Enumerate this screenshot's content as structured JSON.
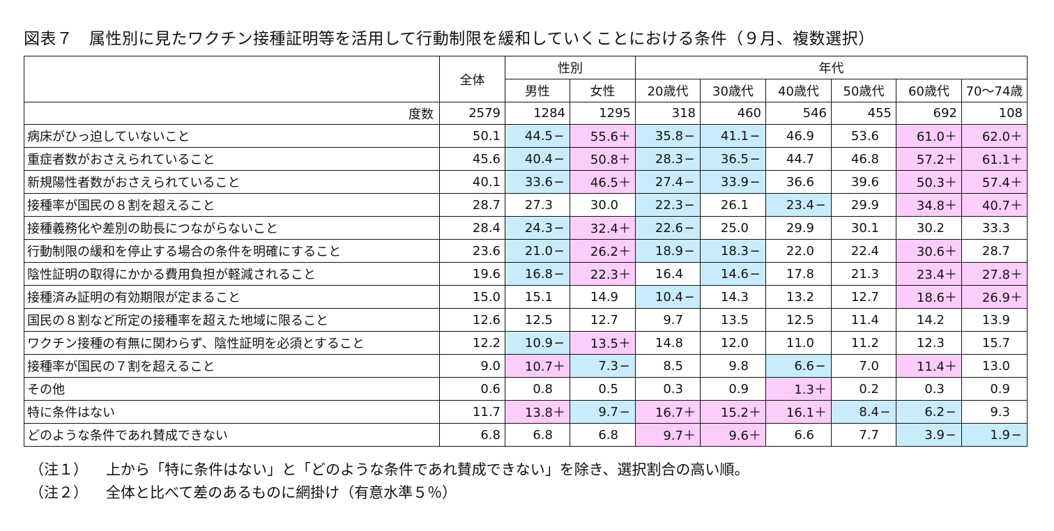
{
  "title": "図表７　属性別に見たワクチン接種証明等を活用して行動制限を緩和していくことにおける条件（９月、複数選択）",
  "headers": {
    "all": "全体",
    "gender_group": "性別",
    "age_group": "年代",
    "columns": [
      "男性",
      "女性",
      "20歳代",
      "30歳代",
      "40歳代",
      "50歳代",
      "60歳代",
      "70～74歳"
    ]
  },
  "counts": {
    "label": "度数",
    "values": [
      "2579",
      "1284",
      "1295",
      "318",
      "460",
      "546",
      "455",
      "692",
      "108"
    ]
  },
  "rows": [
    {
      "label": "病床がひっ迫していないこと",
      "cells": [
        {
          "v": "50.1",
          "m": ""
        },
        {
          "v": "44.5",
          "m": "−"
        },
        {
          "v": "55.6",
          "m": "＋"
        },
        {
          "v": "35.8",
          "m": "−"
        },
        {
          "v": "41.1",
          "m": "−"
        },
        {
          "v": "46.9",
          "m": ""
        },
        {
          "v": "53.6",
          "m": ""
        },
        {
          "v": "61.0",
          "m": "＋"
        },
        {
          "v": "62.0",
          "m": "＋"
        }
      ]
    },
    {
      "label": "重症者数がおさえられていること",
      "cells": [
        {
          "v": "45.6",
          "m": ""
        },
        {
          "v": "40.4",
          "m": "−"
        },
        {
          "v": "50.8",
          "m": "＋"
        },
        {
          "v": "28.3",
          "m": "−"
        },
        {
          "v": "36.5",
          "m": "−"
        },
        {
          "v": "44.7",
          "m": ""
        },
        {
          "v": "46.8",
          "m": ""
        },
        {
          "v": "57.2",
          "m": "＋"
        },
        {
          "v": "61.1",
          "m": "＋"
        }
      ]
    },
    {
      "label": "新規陽性者数がおさえられていること",
      "cells": [
        {
          "v": "40.1",
          "m": ""
        },
        {
          "v": "33.6",
          "m": "−"
        },
        {
          "v": "46.5",
          "m": "＋"
        },
        {
          "v": "27.4",
          "m": "−"
        },
        {
          "v": "33.9",
          "m": "−"
        },
        {
          "v": "36.6",
          "m": ""
        },
        {
          "v": "39.6",
          "m": ""
        },
        {
          "v": "50.3",
          "m": "＋"
        },
        {
          "v": "57.4",
          "m": "＋"
        }
      ]
    },
    {
      "label": "接種率が国民の８割を超えること",
      "cells": [
        {
          "v": "28.7",
          "m": ""
        },
        {
          "v": "27.3",
          "m": ""
        },
        {
          "v": "30.0",
          "m": ""
        },
        {
          "v": "22.3",
          "m": "−"
        },
        {
          "v": "26.1",
          "m": ""
        },
        {
          "v": "23.4",
          "m": "−"
        },
        {
          "v": "29.9",
          "m": ""
        },
        {
          "v": "34.8",
          "m": "＋"
        },
        {
          "v": "40.7",
          "m": "＋"
        }
      ]
    },
    {
      "label": "接種義務化や差別の助長につながらないこと",
      "cells": [
        {
          "v": "28.4",
          "m": ""
        },
        {
          "v": "24.3",
          "m": "−"
        },
        {
          "v": "32.4",
          "m": "＋"
        },
        {
          "v": "22.6",
          "m": "−"
        },
        {
          "v": "25.0",
          "m": ""
        },
        {
          "v": "29.9",
          "m": ""
        },
        {
          "v": "30.1",
          "m": ""
        },
        {
          "v": "30.2",
          "m": ""
        },
        {
          "v": "33.3",
          "m": ""
        }
      ]
    },
    {
      "label": "行動制限の緩和を停止する場合の条件を明確にすること",
      "cells": [
        {
          "v": "23.6",
          "m": ""
        },
        {
          "v": "21.0",
          "m": "−"
        },
        {
          "v": "26.2",
          "m": "＋"
        },
        {
          "v": "18.9",
          "m": "−"
        },
        {
          "v": "18.3",
          "m": "−"
        },
        {
          "v": "22.0",
          "m": ""
        },
        {
          "v": "22.4",
          "m": ""
        },
        {
          "v": "30.6",
          "m": "＋"
        },
        {
          "v": "28.7",
          "m": ""
        }
      ]
    },
    {
      "label": "陰性証明の取得にかかる費用負担が軽減されること",
      "cells": [
        {
          "v": "19.6",
          "m": ""
        },
        {
          "v": "16.8",
          "m": "−"
        },
        {
          "v": "22.3",
          "m": "＋"
        },
        {
          "v": "16.4",
          "m": ""
        },
        {
          "v": "14.6",
          "m": "−"
        },
        {
          "v": "17.8",
          "m": ""
        },
        {
          "v": "21.3",
          "m": ""
        },
        {
          "v": "23.4",
          "m": "＋"
        },
        {
          "v": "27.8",
          "m": "＋"
        }
      ]
    },
    {
      "label": "接種済み証明の有効期限が定まること",
      "cells": [
        {
          "v": "15.0",
          "m": ""
        },
        {
          "v": "15.1",
          "m": ""
        },
        {
          "v": "14.9",
          "m": ""
        },
        {
          "v": "10.4",
          "m": "−"
        },
        {
          "v": "14.3",
          "m": ""
        },
        {
          "v": "13.2",
          "m": ""
        },
        {
          "v": "12.7",
          "m": ""
        },
        {
          "v": "18.6",
          "m": "＋"
        },
        {
          "v": "26.9",
          "m": "＋"
        }
      ]
    },
    {
      "label": "国民の８割など所定の接種率を超えた地域に限ること",
      "cells": [
        {
          "v": "12.6",
          "m": ""
        },
        {
          "v": "12.5",
          "m": ""
        },
        {
          "v": "12.7",
          "m": ""
        },
        {
          "v": "9.7",
          "m": ""
        },
        {
          "v": "13.5",
          "m": ""
        },
        {
          "v": "12.5",
          "m": ""
        },
        {
          "v": "11.4",
          "m": ""
        },
        {
          "v": "14.2",
          "m": ""
        },
        {
          "v": "13.9",
          "m": ""
        }
      ]
    },
    {
      "label": "ワクチン接種の有無に関わらず、陰性証明を必須とすること",
      "cells": [
        {
          "v": "12.2",
          "m": ""
        },
        {
          "v": "10.9",
          "m": "−"
        },
        {
          "v": "13.5",
          "m": "＋"
        },
        {
          "v": "14.8",
          "m": ""
        },
        {
          "v": "12.0",
          "m": ""
        },
        {
          "v": "11.0",
          "m": ""
        },
        {
          "v": "11.2",
          "m": ""
        },
        {
          "v": "12.3",
          "m": ""
        },
        {
          "v": "15.7",
          "m": ""
        }
      ]
    },
    {
      "label": "接種率が国民の７割を超えること",
      "cells": [
        {
          "v": "9.0",
          "m": ""
        },
        {
          "v": "10.7",
          "m": "＋"
        },
        {
          "v": "7.3",
          "m": "−"
        },
        {
          "v": "8.5",
          "m": ""
        },
        {
          "v": "9.8",
          "m": ""
        },
        {
          "v": "6.6",
          "m": "−"
        },
        {
          "v": "7.0",
          "m": ""
        },
        {
          "v": "11.4",
          "m": "＋"
        },
        {
          "v": "13.0",
          "m": ""
        }
      ]
    },
    {
      "label": "その他",
      "cells": [
        {
          "v": "0.6",
          "m": ""
        },
        {
          "v": "0.8",
          "m": ""
        },
        {
          "v": "0.5",
          "m": ""
        },
        {
          "v": "0.3",
          "m": ""
        },
        {
          "v": "0.9",
          "m": ""
        },
        {
          "v": "1.3",
          "m": "＋"
        },
        {
          "v": "0.2",
          "m": ""
        },
        {
          "v": "0.3",
          "m": ""
        },
        {
          "v": "0.9",
          "m": ""
        }
      ]
    },
    {
      "label": "特に条件はない",
      "cells": [
        {
          "v": "11.7",
          "m": ""
        },
        {
          "v": "13.8",
          "m": "＋"
        },
        {
          "v": "9.7",
          "m": "−"
        },
        {
          "v": "16.7",
          "m": "＋"
        },
        {
          "v": "15.2",
          "m": "＋"
        },
        {
          "v": "16.1",
          "m": "＋"
        },
        {
          "v": "8.4",
          "m": "−"
        },
        {
          "v": "6.2",
          "m": "−"
        },
        {
          "v": "9.3",
          "m": ""
        }
      ]
    },
    {
      "label": "どのような条件であれ賛成できない",
      "cells": [
        {
          "v": "6.8",
          "m": ""
        },
        {
          "v": "6.8",
          "m": ""
        },
        {
          "v": "6.8",
          "m": ""
        },
        {
          "v": "9.7",
          "m": "＋"
        },
        {
          "v": "9.6",
          "m": "＋"
        },
        {
          "v": "6.6",
          "m": ""
        },
        {
          "v": "7.7",
          "m": ""
        },
        {
          "v": "3.9",
          "m": "−"
        },
        {
          "v": "1.9",
          "m": "−"
        }
      ]
    }
  ],
  "notes": [
    {
      "tag": "（注１）",
      "text": "上から「特に条件はない」と「どのような条件であれ賛成できない」を除き、選択割合の高い順。"
    },
    {
      "tag": "（注２）",
      "text": "全体と比べて差のあるものに網掛け（有意水準５％）"
    }
  ],
  "colors": {
    "higher": "#fccdfb",
    "lower": "#c9ecfc"
  }
}
